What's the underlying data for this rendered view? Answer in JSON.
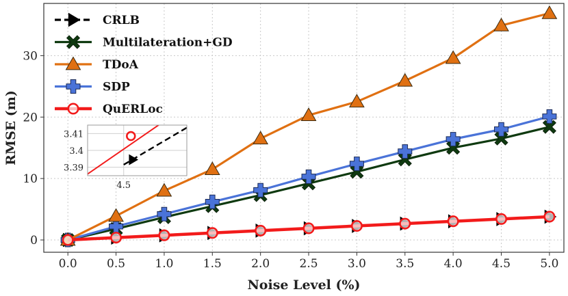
{
  "chart_data": {
    "type": "line",
    "xlabel": "Noise Level (%)",
    "ylabel": "RMSE (m)",
    "xlim": [
      -0.25,
      5.15
    ],
    "ylim": [
      -2,
      38.5
    ],
    "x": [
      0.0,
      0.5,
      1.0,
      1.5,
      2.0,
      2.5,
      3.0,
      3.5,
      4.0,
      4.5,
      5.0
    ],
    "x_ticks": [
      "0.0",
      "0.5",
      "1.0",
      "1.5",
      "2.0",
      "2.5",
      "3.0",
      "3.5",
      "4.0",
      "4.5",
      "5.0"
    ],
    "y_ticks": [
      "0",
      "10",
      "20",
      "30"
    ],
    "grid": true,
    "legend_position": "top-left",
    "series": [
      {
        "name": "CRLB",
        "color": "#000000",
        "marker": "triangle-right",
        "dashed": true,
        "values": [
          0.0,
          0.38,
          0.76,
          1.14,
          1.52,
          1.9,
          2.28,
          2.66,
          3.03,
          3.4,
          3.78
        ]
      },
      {
        "name": "Multilateration+GD",
        "color": "#0f3a10",
        "marker": "x",
        "values": [
          0.0,
          1.8,
          3.7,
          5.5,
          7.3,
          9.2,
          11.1,
          13.1,
          15.0,
          16.5,
          18.4
        ]
      },
      {
        "name": "TDoA",
        "color": "#e07012",
        "marker": "triangle-up",
        "values": [
          0.0,
          3.9,
          8.0,
          11.5,
          16.5,
          20.3,
          22.5,
          25.9,
          29.6,
          34.9,
          36.9
        ]
      },
      {
        "name": "SDP",
        "color": "#4a73d8",
        "marker": "plus",
        "values": [
          0.0,
          2.2,
          4.2,
          6.2,
          8.1,
          10.3,
          12.4,
          14.4,
          16.4,
          18.0,
          20.1
        ]
      },
      {
        "name": "QuERLoc",
        "color": "#f21b1b",
        "marker": "circle",
        "values": [
          0.0,
          0.38,
          0.76,
          1.14,
          1.52,
          1.9,
          2.28,
          2.66,
          3.04,
          3.41,
          3.79
        ]
      }
    ],
    "inset": {
      "xlim": [
        4.48,
        4.535
      ],
      "ylim": [
        3.385,
        3.415
      ],
      "x_ticks": [
        "4.5"
      ],
      "y_ticks": [
        "3.41",
        "3.4",
        "3.39"
      ],
      "crlb_line": [
        [
          4.5,
          3.3915
        ],
        [
          4.535,
          3.4135
        ]
      ],
      "crlb_marker": [
        4.505,
        3.3945
      ],
      "querloc_line": [
        [
          4.48,
          3.386
        ],
        [
          4.52,
          3.4155
        ]
      ],
      "querloc_marker": [
        4.504,
        3.4085
      ]
    }
  }
}
